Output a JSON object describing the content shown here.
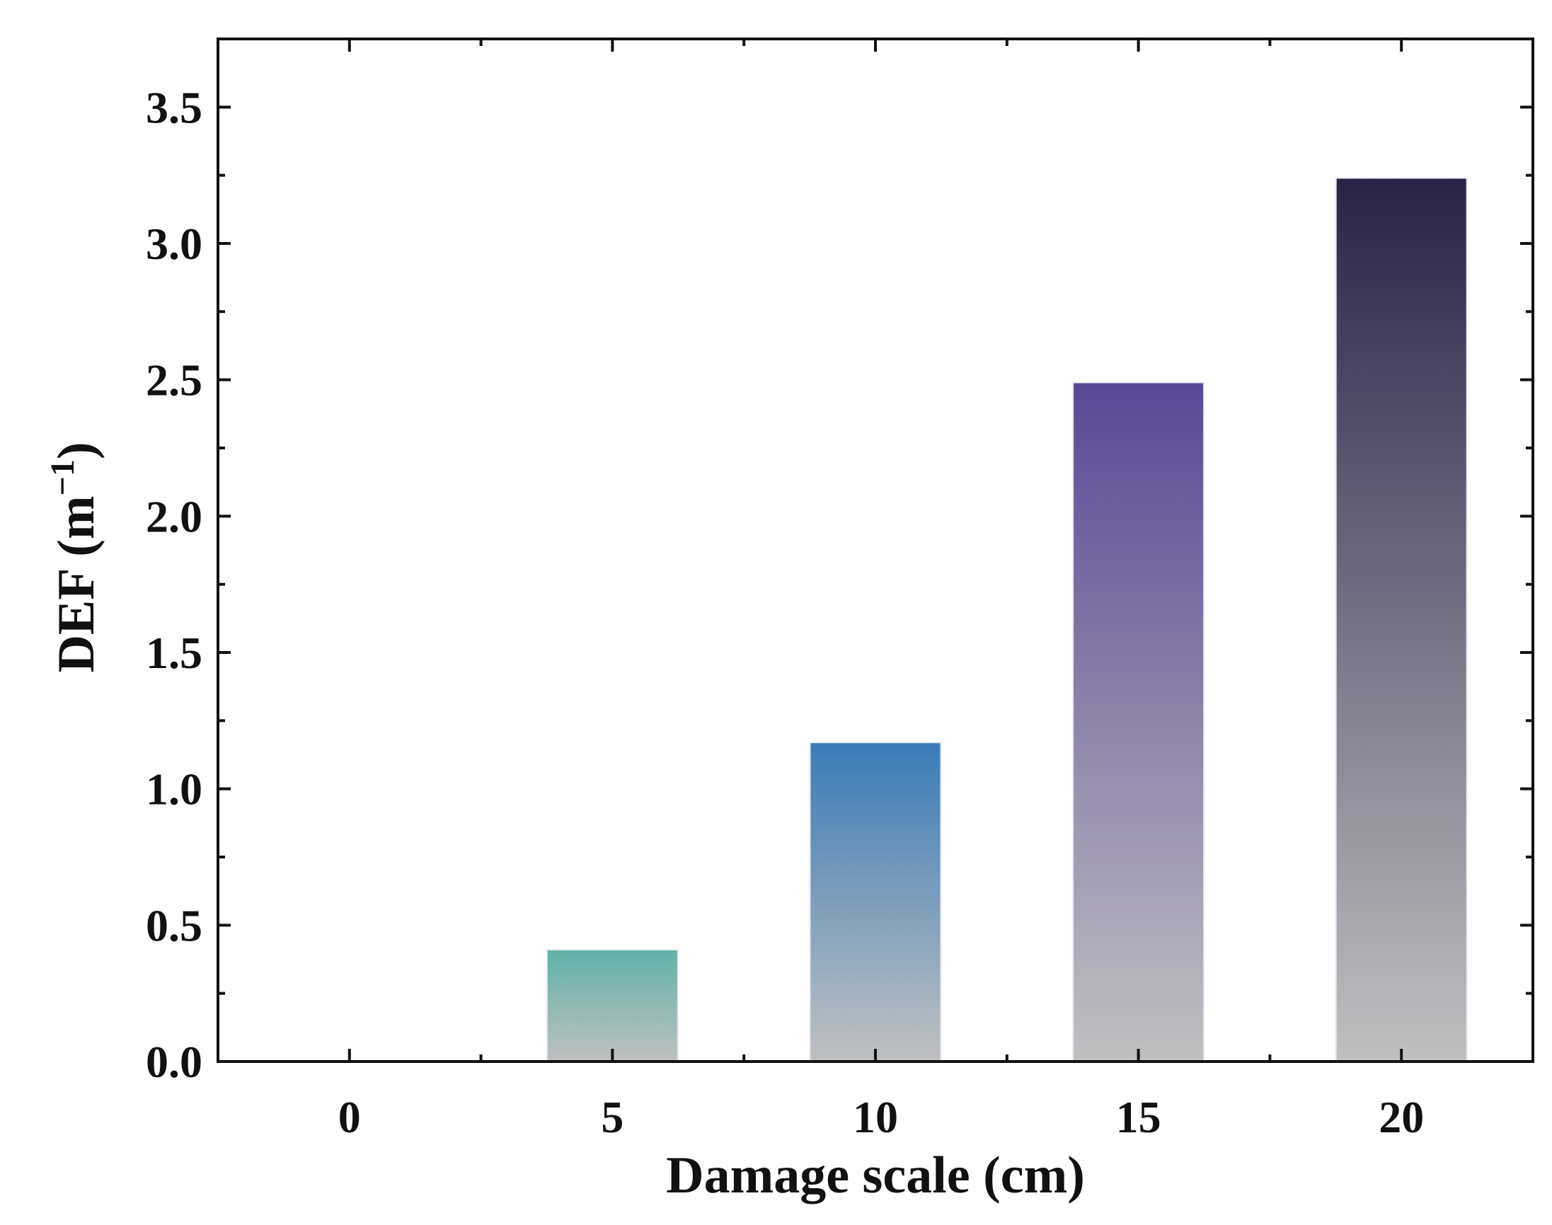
{
  "chart_data": {
    "type": "bar",
    "categories": [
      "0",
      "5",
      "10",
      "15",
      "20"
    ],
    "values": [
      0,
      0.41,
      1.17,
      2.49,
      3.24
    ],
    "xlabel": "Damage scale (cm)",
    "ylabel": {
      "prefix": "DEF (m",
      "sup": "−1",
      "suffix": ")"
    },
    "ylim": [
      0,
      3.75
    ],
    "yticks": [
      "0.0",
      "0.5",
      "1.0",
      "1.5",
      "2.0",
      "2.5",
      "3.0",
      "3.5"
    ],
    "xlim": [
      -2.5,
      22.5
    ],
    "grid": false,
    "legend": "none",
    "bar_top_colors": [
      "#5fb3a8",
      "#5fb3a8",
      "#3a7cb8",
      "#5a4896",
      "#2a2347"
    ],
    "bar_bottom_color": "#c0c0c0"
  }
}
